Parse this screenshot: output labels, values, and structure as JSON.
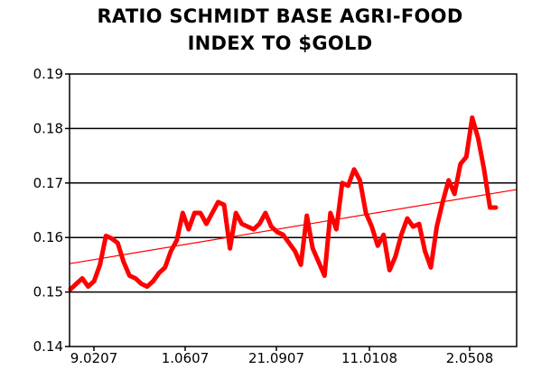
{
  "chart_data": {
    "type": "line",
    "title_lines": [
      "RATIO SCHMIDT BASE AGRI-FOOD",
      "INDEX TO $GOLD"
    ],
    "xlabel": "",
    "ylabel": "",
    "ylim": [
      0.14,
      0.19
    ],
    "y_ticks": [
      "0.19",
      "0.18",
      "0.17",
      "0.16",
      "0.15",
      "0.14"
    ],
    "x_tick_labels": [
      "9.0207",
      "1.0607",
      "21.0907",
      "11.0108",
      "2.0508"
    ],
    "grid": "horizontal",
    "colors": {
      "series": "#ff0000",
      "trend": "#ff0000",
      "grid": "#000000"
    },
    "series": [
      {
        "style": "thick",
        "y": [
          0.1505,
          0.1515,
          0.1525,
          0.151,
          0.152,
          0.155,
          0.1603,
          0.1598,
          0.159,
          0.1555,
          0.153,
          0.1525,
          0.1515,
          0.151,
          0.152,
          0.1535,
          0.1545,
          0.1575,
          0.1595,
          0.1645,
          0.1615,
          0.1645,
          0.1645,
          0.1625,
          0.1645,
          0.1665,
          0.166,
          0.158,
          0.1645,
          0.1625,
          0.162,
          0.1615,
          0.1625,
          0.1645,
          0.162,
          0.161,
          0.1605,
          0.159,
          0.1575,
          0.155,
          0.164,
          0.158,
          0.1555,
          0.153,
          0.1645,
          0.1615,
          0.17,
          0.1695,
          0.1725,
          0.1705,
          0.1645,
          0.162,
          0.1585,
          0.1605,
          0.154,
          0.1565,
          0.1605,
          0.1635,
          0.162,
          0.1625,
          0.1575,
          0.1545,
          0.162,
          0.1665,
          0.1705,
          0.168,
          0.1735,
          0.1748,
          0.182,
          0.1782,
          0.1725,
          0.1655,
          0.1655
        ]
      },
      {
        "style": "thin",
        "y": [
          0.1552,
          0.1688
        ]
      }
    ]
  }
}
